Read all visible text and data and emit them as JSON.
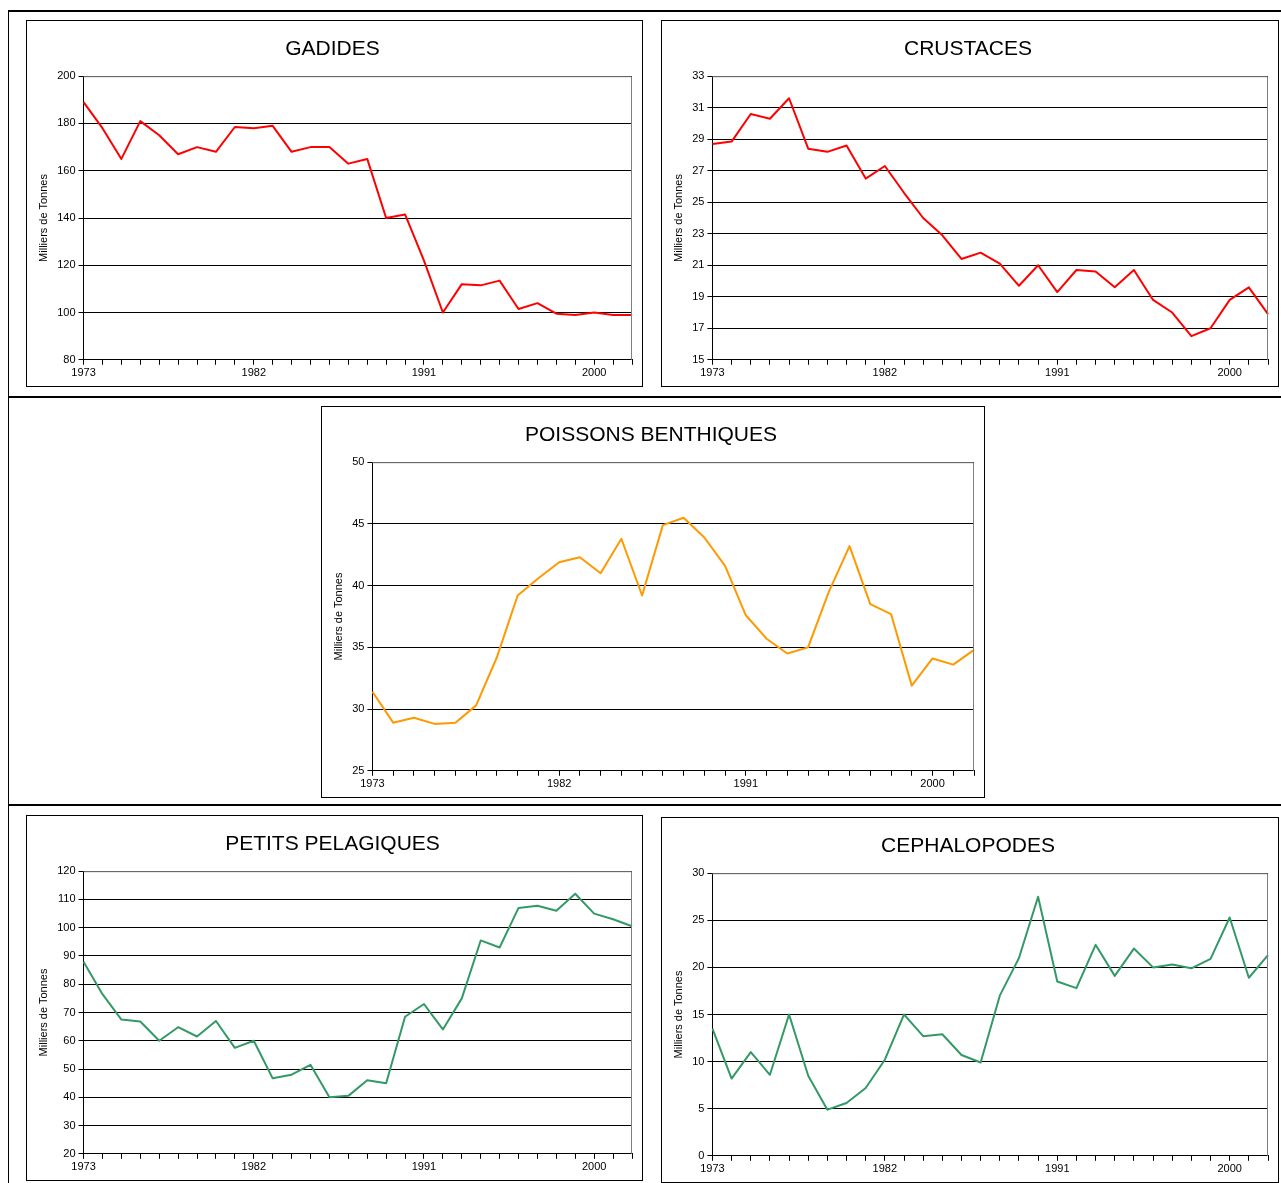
{
  "chart_data": [
    {
      "type": "line",
      "title": "GADIDES",
      "ylabel": "Milliers de Tonnes",
      "categories": [
        "1973",
        null,
        null,
        null,
        null,
        null,
        null,
        null,
        null,
        "1982",
        null,
        null,
        null,
        null,
        null,
        null,
        null,
        null,
        "1991",
        null,
        null,
        null,
        null,
        null,
        null,
        null,
        null,
        "2000",
        null,
        null
      ],
      "series": [
        {
          "color": "#ff0000",
          "values": [
            189,
            178,
            165,
            181,
            175,
            167,
            170,
            168,
            178.5,
            178,
            179,
            168,
            170,
            170,
            163,
            165,
            140,
            141.5,
            122,
            100,
            112,
            111.5,
            113.5,
            101.5,
            104,
            99.5,
            99,
            100,
            99,
            99
          ]
        }
      ],
      "ylim": [
        80,
        200
      ],
      "yticks": [
        80,
        100,
        120,
        140,
        160,
        180,
        200
      ],
      "grid": "y",
      "marker": "none"
    },
    {
      "type": "line",
      "title": "CRUSTACES",
      "ylabel": "Milliers de Tonnes",
      "categories": [
        "1973",
        null,
        null,
        null,
        null,
        null,
        null,
        null,
        null,
        "1982",
        null,
        null,
        null,
        null,
        null,
        null,
        null,
        null,
        "1991",
        null,
        null,
        null,
        null,
        null,
        null,
        null,
        null,
        "2000",
        null,
        null
      ],
      "series": [
        {
          "color": "#ff0000",
          "values": [
            28.7,
            28.85,
            30.6,
            30.3,
            31.6,
            28.4,
            28.2,
            28.6,
            26.5,
            27.3,
            25.6,
            24,
            22.9,
            21.4,
            21.8,
            21.1,
            19.7,
            21,
            19.3,
            20.7,
            20.6,
            19.6,
            20.7,
            18.8,
            18,
            16.5,
            17,
            18.8,
            19.6,
            17.9
          ]
        }
      ],
      "ylim": [
        15,
        33
      ],
      "yticks": [
        15,
        17,
        19,
        21,
        23,
        25,
        27,
        29,
        31,
        33
      ],
      "grid": "y",
      "marker": "none"
    },
    {
      "type": "line",
      "title": "POISSONS BENTHIQUES",
      "ylabel": "Milliers de Tonnes",
      "categories": [
        "1973",
        null,
        null,
        null,
        null,
        null,
        null,
        null,
        null,
        "1982",
        null,
        null,
        null,
        null,
        null,
        null,
        null,
        null,
        "1991",
        null,
        null,
        null,
        null,
        null,
        null,
        null,
        null,
        "2000",
        null,
        null
      ],
      "series": [
        {
          "color": "#ff9900",
          "values": [
            31.4,
            28.9,
            29.3,
            28.8,
            28.9,
            30.3,
            34.2,
            39.2,
            40.6,
            41.9,
            42.3,
            41,
            43.8,
            39.2,
            44.9,
            45.5,
            43.9,
            41.6,
            37.6,
            35.7,
            34.5,
            35,
            39.5,
            43.2,
            38.5,
            37.7,
            31.9,
            34.1,
            33.6,
            34.8
          ]
        }
      ],
      "ylim": [
        25,
        50
      ],
      "yticks": [
        25,
        30,
        35,
        40,
        45,
        50
      ],
      "grid": "y",
      "marker": "none"
    },
    {
      "type": "line",
      "title": "PETITS PELAGIQUES",
      "ylabel": "Milliers de Tonnes",
      "categories": [
        "1973",
        null,
        null,
        null,
        null,
        null,
        null,
        null,
        null,
        "1982",
        null,
        null,
        null,
        null,
        null,
        null,
        null,
        null,
        "1991",
        null,
        null,
        null,
        null,
        null,
        null,
        null,
        null,
        "2000",
        null,
        null
      ],
      "series": [
        {
          "color": "#339966",
          "values": [
            88,
            76.5,
            67.5,
            66.8,
            60,
            64.8,
            61.5,
            67,
            57.5,
            60,
            46.7,
            48,
            51.5,
            40,
            40.5,
            46,
            45,
            68.5,
            73,
            64,
            75,
            95.5,
            93,
            107,
            107.8,
            106,
            112,
            105,
            103,
            100.5
          ]
        }
      ],
      "ylim": [
        20,
        120
      ],
      "yticks": [
        20,
        30,
        40,
        50,
        60,
        70,
        80,
        90,
        100,
        110,
        120
      ],
      "grid": "y",
      "marker": "none"
    },
    {
      "type": "line",
      "title": "CEPHALOPODES",
      "ylabel": "Milliers de Tonnes",
      "categories": [
        "1973",
        null,
        null,
        null,
        null,
        null,
        null,
        null,
        null,
        "1982",
        null,
        null,
        null,
        null,
        null,
        null,
        null,
        null,
        "1991",
        null,
        null,
        null,
        null,
        null,
        null,
        null,
        null,
        "2000",
        null,
        null
      ],
      "series": [
        {
          "color": "#339966",
          "values": [
            13.5,
            8.2,
            11,
            8.6,
            15,
            8.5,
            4.9,
            5.6,
            7.2,
            10.2,
            15,
            12.7,
            12.9,
            10.7,
            9.9,
            17,
            21,
            27.5,
            18.5,
            17.8,
            22.4,
            19.1,
            22,
            20,
            20.3,
            19.9,
            20.9,
            25.3,
            18.9,
            21.3
          ]
        }
      ],
      "ylim": [
        0,
        30
      ],
      "yticks": [
        0,
        5,
        10,
        15,
        20,
        25,
        30
      ],
      "grid": "y",
      "marker": "none"
    }
  ]
}
